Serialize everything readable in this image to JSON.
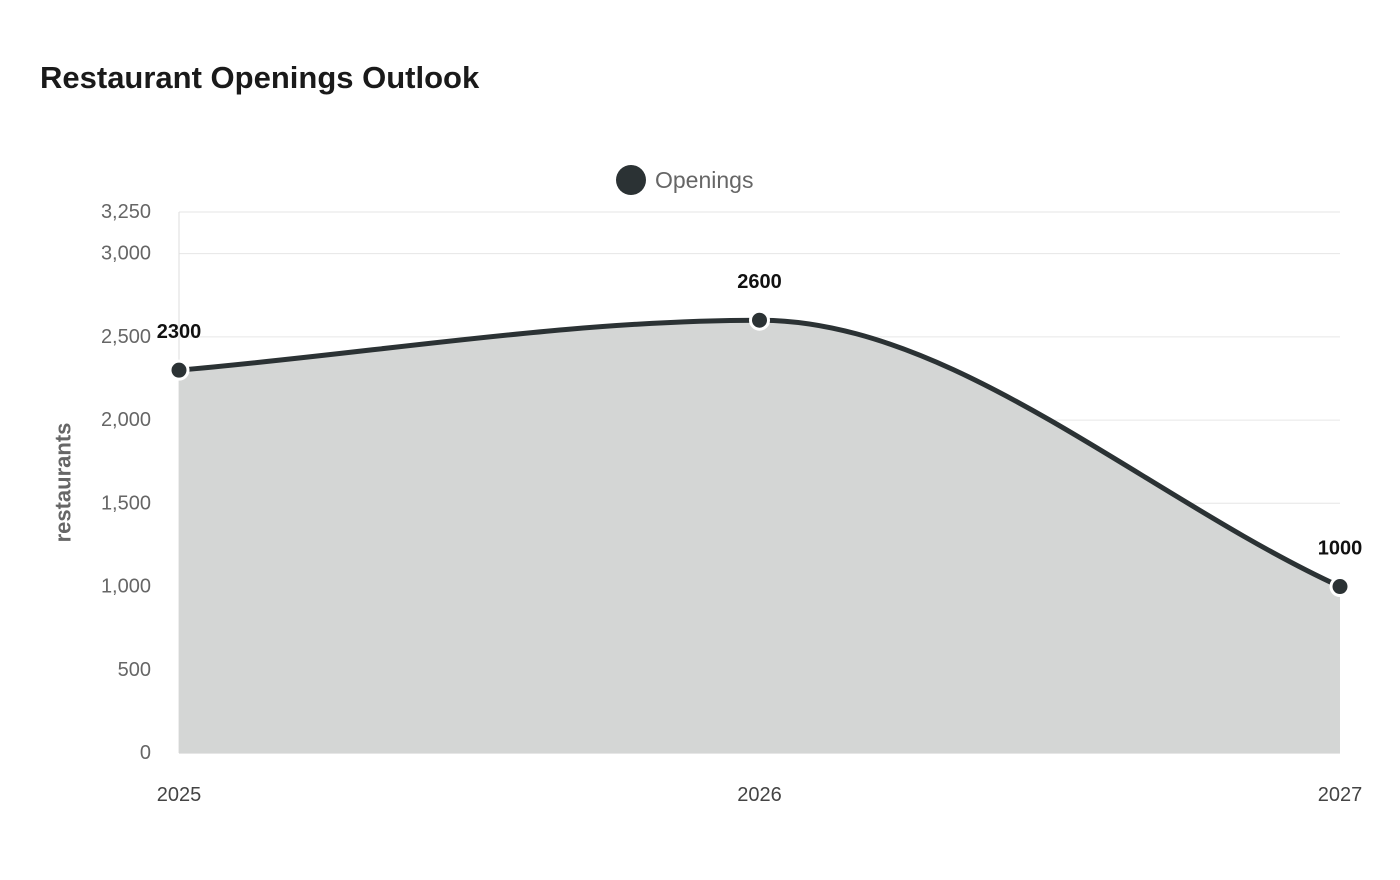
{
  "chart_data": {
    "type": "area",
    "title": "Restaurant Openings Outlook",
    "xlabel": "",
    "ylabel": "restaurants",
    "categories": [
      "2025",
      "2026",
      "2027"
    ],
    "series": [
      {
        "name": "Openings",
        "values": [
          2300,
          2600,
          1000
        ],
        "color": "#2b3234",
        "fill": "#d4d6d5"
      }
    ],
    "y_ticks": [
      0,
      500,
      1000,
      1500,
      2000,
      2500,
      3000,
      3250
    ],
    "y_tick_labels": [
      "0",
      "500",
      "1,000",
      "1,500",
      "2,000",
      "2,500",
      "3,000",
      "3,250"
    ],
    "ylim": [
      0,
      3250
    ],
    "data_labels": [
      "2300",
      "2600",
      "1000"
    ],
    "legend_position": "top-center",
    "grid": true
  }
}
